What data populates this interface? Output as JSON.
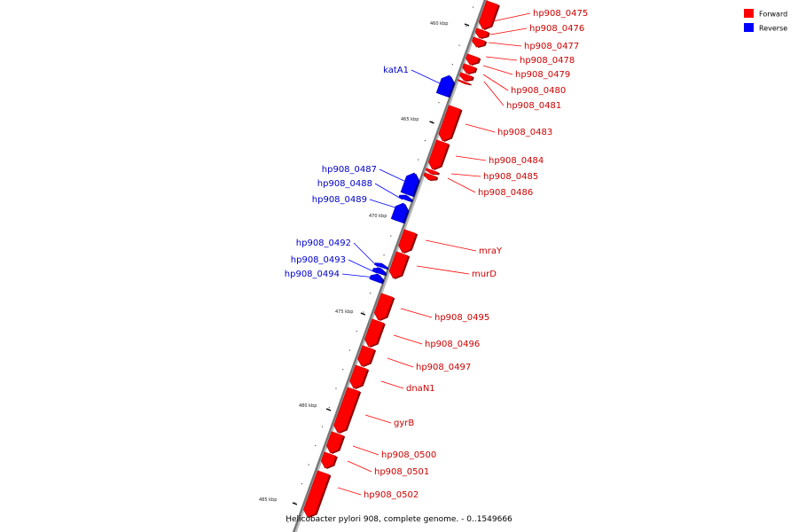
{
  "legend": {
    "forward": {
      "label": "Forward",
      "color": "#ff0000"
    },
    "reverse": {
      "label": "Reverse",
      "color": "#0000ff"
    }
  },
  "caption": "Helicobacter pylori 908, complete genome. - 0..1549666",
  "scale": {
    "ticks": [
      {
        "label": "460 kbp"
      },
      {
        "label": "465 kbp"
      },
      {
        "label": "470 kbp"
      },
      {
        "label": "475 kbp"
      },
      {
        "label": "480 kbp"
      },
      {
        "label": "485 kbp"
      }
    ]
  },
  "genes": [
    {
      "name": "hp908_0475",
      "strand": "forward"
    },
    {
      "name": "hp908_0476",
      "strand": "forward"
    },
    {
      "name": "hp908_0477",
      "strand": "forward"
    },
    {
      "name": "hp908_0478",
      "strand": "forward"
    },
    {
      "name": "hp908_0479",
      "strand": "forward"
    },
    {
      "name": "hp908_0480",
      "strand": "forward"
    },
    {
      "name": "hp908_0481",
      "strand": "forward"
    },
    {
      "name": "katA1",
      "strand": "reverse"
    },
    {
      "name": "hp908_0483",
      "strand": "forward"
    },
    {
      "name": "hp908_0484",
      "strand": "forward"
    },
    {
      "name": "hp908_0485",
      "strand": "forward"
    },
    {
      "name": "hp908_0486",
      "strand": "forward"
    },
    {
      "name": "hp908_0487",
      "strand": "reverse"
    },
    {
      "name": "hp908_0488",
      "strand": "reverse"
    },
    {
      "name": "hp908_0489",
      "strand": "reverse"
    },
    {
      "name": "mraY",
      "strand": "forward"
    },
    {
      "name": "murD",
      "strand": "forward"
    },
    {
      "name": "hp908_0492",
      "strand": "reverse"
    },
    {
      "name": "hp908_0493",
      "strand": "reverse"
    },
    {
      "name": "hp908_0494",
      "strand": "reverse"
    },
    {
      "name": "hp908_0495",
      "strand": "forward"
    },
    {
      "name": "hp908_0496",
      "strand": "forward"
    },
    {
      "name": "hp908_0497",
      "strand": "forward"
    },
    {
      "name": "dnaN1",
      "strand": "forward"
    },
    {
      "name": "gyrB",
      "strand": "forward"
    },
    {
      "name": "hp908_0500",
      "strand": "forward"
    },
    {
      "name": "hp908_0501",
      "strand": "forward"
    },
    {
      "name": "hp908_0502",
      "strand": "forward"
    }
  ]
}
